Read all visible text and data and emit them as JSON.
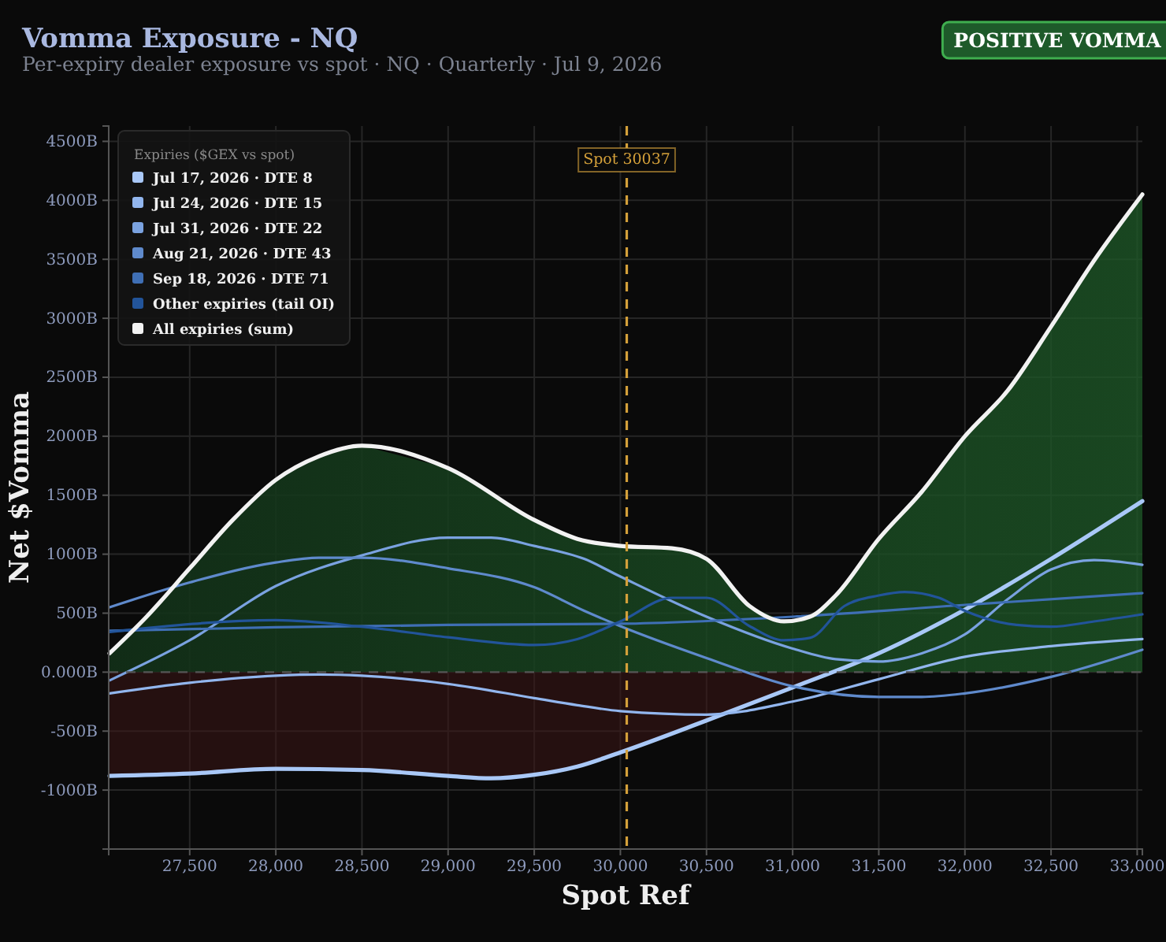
{
  "chart_data": {
    "type": "line",
    "title": "Vomma Exposure - NQ",
    "subtitle": "Per-expiry dealer exposure vs spot · NQ · Quarterly · Jul 9, 2026",
    "xlabel": "Spot Ref",
    "ylabel": "Net $Vomma",
    "legend_title": "Expiries ($GEX vs spot)",
    "annotations": [
      "POSITIVE VOMMA"
    ],
    "xlim": [
      27030,
      33030
    ],
    "ylim": [
      -1500,
      4630
    ],
    "xticks": [
      {
        "value": 27500,
        "label": "27,500"
      },
      {
        "value": 28000,
        "label": "28,000"
      },
      {
        "value": 28500,
        "label": "28,500"
      },
      {
        "value": 29000,
        "label": "29,000"
      },
      {
        "value": 29500,
        "label": "29,500"
      },
      {
        "value": 30000,
        "label": "30,000"
      },
      {
        "value": 30500,
        "label": "30,500"
      },
      {
        "value": 31000,
        "label": "31,000"
      },
      {
        "value": 31500,
        "label": "31,500"
      },
      {
        "value": 32000,
        "label": "32,000"
      },
      {
        "value": 32500,
        "label": "32,500"
      },
      {
        "value": 33000,
        "label": "33,000"
      }
    ],
    "yticks": [
      {
        "value": -1000,
        "label": "-1000B"
      },
      {
        "value": -500,
        "label": "-500B"
      },
      {
        "value": 0,
        "label": "0.000B"
      },
      {
        "value": 500,
        "label": "500B"
      },
      {
        "value": 1000,
        "label": "1000B"
      },
      {
        "value": 1500,
        "label": "1500B"
      },
      {
        "value": 2000,
        "label": "2000B"
      },
      {
        "value": 2500,
        "label": "2500B"
      },
      {
        "value": 3000,
        "label": "3000B"
      },
      {
        "value": 3500,
        "label": "3500B"
      },
      {
        "value": 4000,
        "label": "4000B"
      },
      {
        "value": 4500,
        "label": "4500B"
      }
    ],
    "grid": true,
    "legend": "top left",
    "marker": "none",
    "line_style": "solid",
    "ref_lines": [
      {
        "axis": "x",
        "value": 30037,
        "label": "Spot 30037",
        "color": "#d4a03a",
        "line_style": "dashed"
      },
      {
        "axis": "y",
        "value": 0,
        "color": "#555555",
        "line_style": "dashed"
      }
    ],
    "series": [
      {
        "name": "Jul 17, 2026 · DTE 8",
        "type": "area",
        "color": "#a9c8f7",
        "x": [
          27035,
          27500,
          28000,
          28500,
          29000,
          29250,
          29500,
          29750,
          30000,
          30500,
          31000,
          31500,
          32000,
          32500,
          33030
        ],
        "values": [
          -880,
          -860,
          -820,
          -830,
          -880,
          -900,
          -870,
          -800,
          -680,
          -410,
          -130,
          160,
          530,
          960,
          1450
        ]
      },
      {
        "name": "Jul 24, 2026 · DTE 15",
        "color": "#92b6ee",
        "x": [
          27035,
          27500,
          28000,
          28250,
          28500,
          29000,
          29500,
          29750,
          30000,
          30500,
          31000,
          31500,
          32000,
          32500,
          33030
        ],
        "values": [
          -180,
          -90,
          -30,
          -20,
          -30,
          -100,
          -220,
          -280,
          -330,
          -360,
          -250,
          -60,
          130,
          220,
          280
        ]
      },
      {
        "name": "Jul 31, 2026 · DTE 22",
        "color": "#7aa2e0",
        "x": [
          27035,
          27500,
          28000,
          28500,
          29000,
          29250,
          29500,
          29790,
          30000,
          30500,
          31000,
          31250,
          31500,
          31750,
          32000,
          32250,
          32500,
          32750,
          33030
        ],
        "values": [
          -70,
          270,
          730,
          990,
          1140,
          1140,
          1070,
          960,
          810,
          470,
          200,
          110,
          90,
          160,
          320,
          620,
          870,
          950,
          910
        ]
      },
      {
        "name": "Aug 21, 2026 · DTE 43",
        "color": "#5f8acc",
        "x": [
          27035,
          27500,
          28000,
          28250,
          28500,
          29000,
          29500,
          29790,
          30000,
          30500,
          31000,
          31500,
          31750,
          32000,
          32500,
          33030
        ],
        "values": [
          550,
          760,
          930,
          970,
          970,
          880,
          720,
          520,
          390,
          120,
          -120,
          -210,
          -210,
          -180,
          -40,
          190
        ]
      },
      {
        "name": "Sep 18, 2026 · DTE 71",
        "color": "#3f6fb5",
        "x": [
          27035,
          28000,
          29000,
          30000,
          31000,
          32000,
          33030
        ],
        "values": [
          350,
          380,
          400,
          410,
          470,
          570,
          670
        ]
      },
      {
        "name": "Other expiries (tail OI)",
        "color": "#22549a",
        "x": [
          27035,
          28000,
          28500,
          29000,
          29500,
          29750,
          30000,
          30300,
          30500,
          30750,
          30950,
          31100,
          31300,
          31500,
          31650,
          31850,
          32000,
          32300,
          32500,
          32750,
          33030
        ],
        "values": [
          340,
          440,
          385,
          295,
          230,
          280,
          430,
          630,
          630,
          390,
          270,
          290,
          560,
          650,
          680,
          630,
          520,
          400,
          385,
          430,
          490
        ]
      },
      {
        "name": "All expiries (sum)",
        "type": "area",
        "color": "#f2f2f2",
        "x": [
          27035,
          27250,
          27500,
          27750,
          28000,
          28250,
          28500,
          29000,
          29500,
          29750,
          30000,
          30300,
          30500,
          30750,
          30950,
          31100,
          31250,
          31500,
          31750,
          32000,
          32250,
          32500,
          32750,
          33030
        ],
        "values": [
          160,
          470,
          880,
          1290,
          1630,
          1830,
          1920,
          1730,
          1290,
          1130,
          1070,
          1050,
          960,
          560,
          430,
          470,
          650,
          1130,
          1530,
          2000,
          2390,
          2930,
          3490,
          4050
        ]
      }
    ]
  }
}
